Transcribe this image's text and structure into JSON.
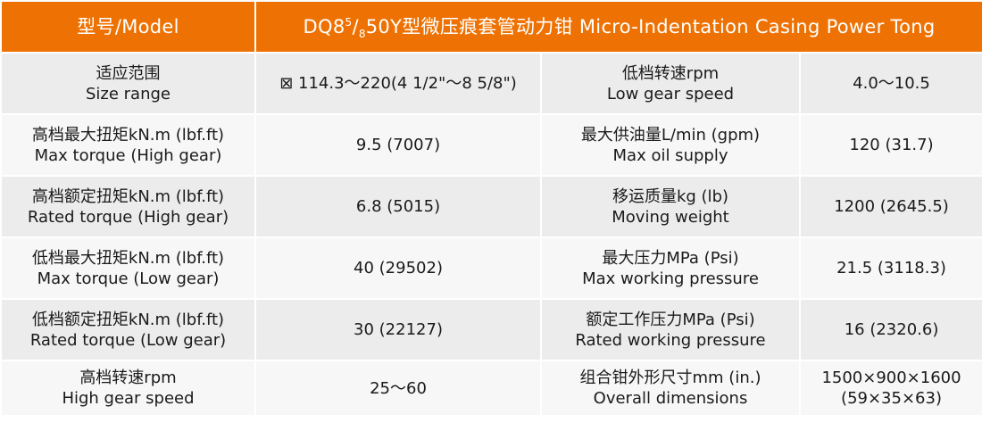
{
  "header": {
    "model_label": "型号/Model",
    "title_prefix": "DQ8",
    "title_sup": "5",
    "title_slash": "/",
    "title_sub": "8",
    "title_rest": "50Y型微压痕套管动力钳 Micro-Indentation Casing Power Tong"
  },
  "colors": {
    "header_bg": "#ee7203",
    "row_dark": "#ececec",
    "row_light": "#f7f7f7"
  },
  "rows": [
    {
      "l_cn": "适应范围",
      "l_en": "Size range",
      "l_val": "⊠ 114.3～220(4 1/2\"～8 5/8\")",
      "r_cn": "低档转速rpm",
      "r_en": "Low gear speed",
      "r_val": "4.0～10.5"
    },
    {
      "l_cn": "高档最大扭矩kN.m (lbf.ft)",
      "l_en": "Max torque (High gear)",
      "l_val": "9.5 (7007)",
      "r_cn": "最大供油量L/min (gpm)",
      "r_en": "Max oil supply",
      "r_val": "120 (31.7)"
    },
    {
      "l_cn": "高档额定扭矩kN.m (lbf.ft)",
      "l_en": "Rated torque (High gear)",
      "l_val": "6.8 (5015)",
      "r_cn": "移运质量kg (lb)",
      "r_en": "Moving weight",
      "r_val": "1200 (2645.5)"
    },
    {
      "l_cn": "低档最大扭矩kN.m (lbf.ft)",
      "l_en": "Max torque (Low gear)",
      "l_val": "40 (29502)",
      "r_cn": "最大压力MPa (Psi)",
      "r_en": "Max working pressure",
      "r_val": "21.5 (3118.3)"
    },
    {
      "l_cn": "低档额定扭矩kN.m (lbf.ft)",
      "l_en": "Rated torque (Low gear)",
      "l_val": "30 (22127)",
      "r_cn": "额定工作压力MPa (Psi)",
      "r_en": "Rated working pressure",
      "r_val": "16 (2320.6)"
    },
    {
      "l_cn": "高档转速rpm",
      "l_en": "High gear speed",
      "l_val": "25～60",
      "r_cn": "组合钳外形尺寸mm (in.)",
      "r_en": "Overall dimensions",
      "r_val": "1500×900×1600",
      "r_val2": "(59×35×63)"
    }
  ]
}
